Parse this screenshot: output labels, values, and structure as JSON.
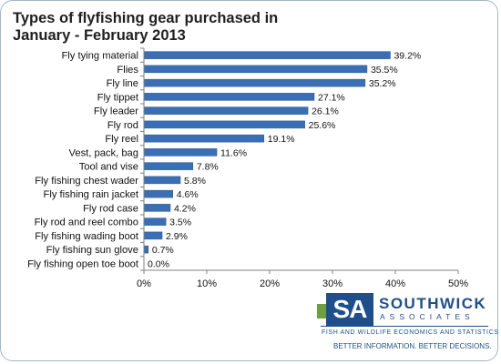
{
  "chart_data": {
    "type": "bar",
    "orientation": "horizontal",
    "title_line1": "Types of flyfishing gear purchased in",
    "title_line2": "January - February 2013",
    "categories": [
      "Fly tying material",
      "Flies",
      "Fly line",
      "Fly tippet",
      "Fly leader",
      "Fly rod",
      "Fly reel",
      "Vest, pack, bag",
      "Tool and vise",
      "Fly fishing chest wader",
      "Fly fishing rain jacket",
      "Fly rod case",
      "Fly rod and reel combo",
      "Fly fishing wading boot",
      "Fly fishing sun glove",
      "Fly fishing open toe boot"
    ],
    "values": [
      39.2,
      35.5,
      35.2,
      27.1,
      26.1,
      25.6,
      19.1,
      11.6,
      7.8,
      5.8,
      4.6,
      4.2,
      3.5,
      2.9,
      0.7,
      0.0
    ],
    "data_labels": [
      "39.2%",
      "35.5%",
      "35.2%",
      "27.1%",
      "26.1%",
      "25.6%",
      "19.1%",
      "11.6%",
      "7.8%",
      "5.8%",
      "4.6%",
      "4.2%",
      "3.5%",
      "2.9%",
      "0.7%",
      "0.0%"
    ],
    "x_ticks": [
      0,
      10,
      20,
      30,
      40,
      50
    ],
    "x_tick_labels": [
      "0%",
      "10%",
      "20%",
      "30%",
      "40%",
      "50%"
    ],
    "xlim": [
      0,
      50
    ],
    "grid": false,
    "legend": "none",
    "bar_color": "#3a6fb5",
    "bar_edge_color": "#2a5590"
  },
  "logo": {
    "mark": "SA",
    "name": "SOUTHWICK",
    "sub": "ASSOCIATES",
    "tagline": "FISH AND WILDLIFE ECONOMICS AND STATISTICS",
    "motto": "BETTER INFORMATION. BETTER DECISIONS.",
    "brand_color": "#1e4f8c",
    "accent_color": "#6d9f3c"
  }
}
